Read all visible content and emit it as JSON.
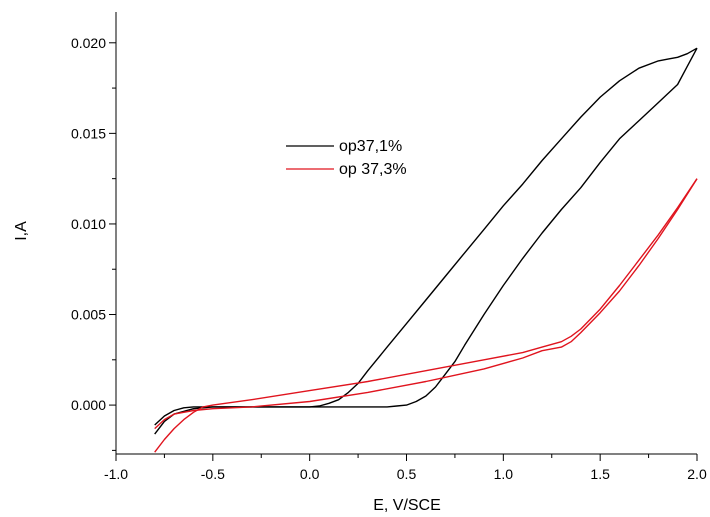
{
  "chart_data": {
    "type": "line",
    "title": "",
    "xlabel": "E, V/SCE",
    "ylabel": "I,A",
    "xlim": [
      -1.0,
      2.0
    ],
    "ylim": [
      -0.0027,
      0.0217
    ],
    "x_major_ticks": [
      -1.0,
      -0.5,
      0.0,
      0.5,
      1.0,
      1.5,
      2.0
    ],
    "x_tick_labels": [
      "-1.0",
      "-0.5",
      "0.0",
      "0.5",
      "1.0",
      "1.5",
      "2.0"
    ],
    "y_major_ticks": [
      0.0,
      0.005,
      0.01,
      0.015,
      0.02
    ],
    "y_tick_labels": [
      "0.000",
      "0.005",
      "0.010",
      "0.015",
      "0.020"
    ],
    "grid": false,
    "legend": {
      "placement": "upper-center"
    },
    "series": [
      {
        "name": "op37,1%",
        "color": "#000000",
        "segments": [
          {
            "x": [
              -0.8,
              -0.75,
              -0.7,
              -0.65,
              -0.6,
              -0.55,
              -0.5,
              -0.4,
              -0.3,
              -0.2,
              -0.1,
              0.0,
              0.05,
              0.1,
              0.15,
              0.2,
              0.25,
              0.3,
              0.4,
              0.5,
              0.6,
              0.7,
              0.8,
              0.9,
              1.0,
              1.1,
              1.2,
              1.3,
              1.4,
              1.5,
              1.6,
              1.7,
              1.8,
              1.85,
              1.9,
              1.95,
              2.0
            ],
            "y": [
              -0.0011,
              -0.0006,
              -0.0003,
              -0.00015,
              -0.0001,
              -0.0001,
              -0.0001,
              -0.0001,
              -0.0001,
              -0.0001,
              -0.0001,
              -0.0001,
              -5e-05,
              0.0001,
              0.0003,
              0.0007,
              0.0012,
              0.0019,
              0.0032,
              0.0045,
              0.0058,
              0.0071,
              0.0084,
              0.0097,
              0.011,
              0.0122,
              0.0135,
              0.0147,
              0.0159,
              0.017,
              0.0179,
              0.0186,
              0.019,
              0.0191,
              0.0192,
              0.0194,
              0.0197
            ]
          },
          {
            "x": [
              2.0,
              1.95,
              1.9,
              1.85,
              1.8,
              1.7,
              1.6,
              1.5,
              1.4,
              1.3,
              1.2,
              1.1,
              1.0,
              0.9,
              0.8,
              0.75,
              0.7,
              0.65,
              0.6,
              0.55,
              0.5,
              0.45,
              0.4,
              0.3,
              0.2,
              0.1,
              0.0,
              -0.2,
              -0.4,
              -0.5,
              -0.6,
              -0.7,
              -0.75,
              -0.8
            ],
            "y": [
              0.0197,
              0.0187,
              0.0177,
              0.0172,
              0.0167,
              0.0157,
              0.0147,
              0.0134,
              0.012,
              0.0108,
              0.0095,
              0.0081,
              0.0066,
              0.005,
              0.0033,
              0.0024,
              0.0017,
              0.001,
              0.0005,
              0.0002,
              0.0,
              -5e-05,
              -0.0001,
              -0.0001,
              -0.0001,
              -0.0001,
              -0.0001,
              -0.0001,
              -0.0001,
              -0.0001,
              -0.0002,
              -0.0005,
              -0.0009,
              -0.0016
            ]
          }
        ]
      },
      {
        "name": "op 37,3%",
        "color": "#e0141e",
        "segments": [
          {
            "x": [
              -0.8,
              -0.75,
              -0.7,
              -0.65,
              -0.6,
              -0.55,
              -0.5,
              -0.3,
              0.0,
              0.3,
              0.6,
              0.9,
              1.1,
              1.2,
              1.3,
              1.35,
              1.4,
              1.5,
              1.6,
              1.7,
              1.8,
              1.9,
              2.0
            ],
            "y": [
              -0.0026,
              -0.0019,
              -0.0013,
              -0.0008,
              -0.0004,
              -0.0001,
              0.0,
              0.0003,
              0.0008,
              0.0013,
              0.0019,
              0.0025,
              0.0029,
              0.0032,
              0.0035,
              0.0038,
              0.0042,
              0.0053,
              0.0066,
              0.008,
              0.0094,
              0.0109,
              0.0125
            ]
          },
          {
            "x": [
              2.0,
              1.9,
              1.8,
              1.7,
              1.6,
              1.5,
              1.4,
              1.35,
              1.3,
              1.2,
              1.1,
              0.9,
              0.6,
              0.3,
              0.0,
              -0.3,
              -0.5,
              -0.6,
              -0.7,
              -0.75,
              -0.8
            ],
            "y": [
              0.0125,
              0.0108,
              0.0092,
              0.0077,
              0.0063,
              0.0051,
              0.004,
              0.0035,
              0.0032,
              0.003,
              0.0026,
              0.002,
              0.0013,
              0.0007,
              0.0002,
              -0.0001,
              -0.0002,
              -0.0003,
              -0.0005,
              -0.0008,
              -0.0013
            ]
          }
        ]
      }
    ]
  }
}
